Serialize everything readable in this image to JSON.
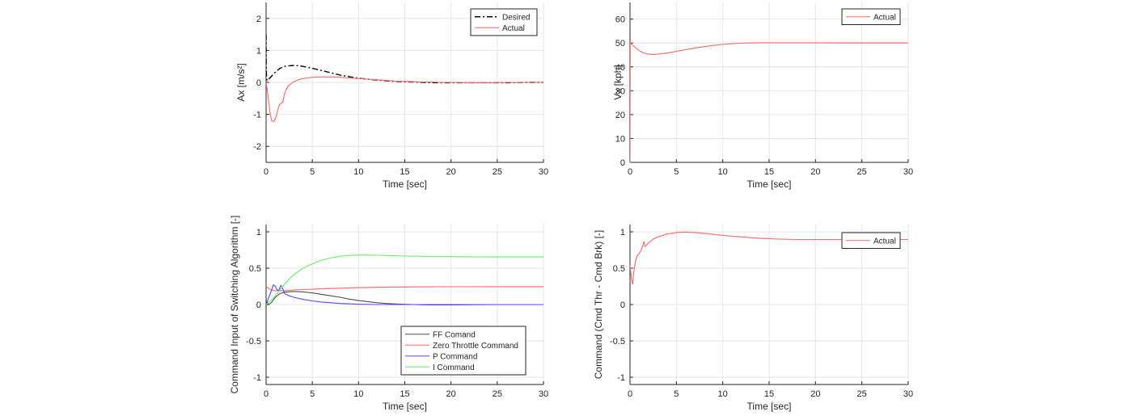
{
  "chart_data": [
    {
      "type": "line",
      "xlabel": "Time [sec]",
      "ylabel": "Ax [m/s²]",
      "xlim": [
        0,
        30
      ],
      "ylim": [
        -2.5,
        2.5
      ],
      "xticks": [
        0,
        5,
        10,
        15,
        20,
        25,
        30
      ],
      "yticks": [
        -2,
        -1,
        0,
        1,
        2
      ],
      "grid": true,
      "legend_position": "top-right",
      "series": [
        {
          "name": "Desired",
          "color": "#000000",
          "style": "dashdot",
          "x": [
            0,
            0.02,
            0.05,
            0.1,
            0.3,
            0.6,
            1.0,
            1.5,
            2.0,
            2.5,
            3.0,
            3.5,
            4.0,
            5.0,
            6.0,
            7.0,
            8.0,
            9.0,
            10.0,
            11.0,
            12.0,
            13.0,
            14.0,
            15.0,
            16.0,
            17.0,
            18.0,
            19.0,
            20.0,
            22.0,
            24.0,
            26.0,
            28.0,
            30.0
          ],
          "y": [
            1.5,
            0.5,
            0.15,
            0.06,
            0.1,
            0.2,
            0.32,
            0.44,
            0.5,
            0.52,
            0.53,
            0.52,
            0.5,
            0.44,
            0.37,
            0.3,
            0.23,
            0.18,
            0.13,
            0.1,
            0.07,
            0.05,
            0.03,
            0.02,
            0.01,
            0.0,
            -0.01,
            -0.01,
            -0.01,
            -0.01,
            -0.01,
            -0.01,
            0.0,
            0.0
          ]
        },
        {
          "name": "Actual",
          "color": "#ff6666",
          "style": "solid",
          "x": [
            0,
            0.2,
            0.4,
            0.6,
            0.8,
            1.0,
            1.2,
            1.4,
            1.6,
            1.8,
            2.0,
            2.2,
            2.5,
            3.0,
            3.5,
            4.0,
            5.0,
            6.0,
            7.0,
            8.0,
            9.0,
            10.0,
            11.0,
            12.0,
            13.0,
            14.0,
            15.0,
            16.0,
            17.0,
            18.0,
            19.0,
            20.0,
            22.0,
            24.0,
            26.0,
            28.0,
            30.0
          ],
          "y": [
            0,
            -0.4,
            -0.9,
            -1.2,
            -1.22,
            -1.15,
            -0.95,
            -0.72,
            -0.65,
            -0.62,
            -0.35,
            -0.2,
            -0.08,
            0.02,
            0.08,
            0.12,
            0.16,
            0.17,
            0.17,
            0.16,
            0.14,
            0.12,
            0.1,
            0.08,
            0.06,
            0.04,
            0.03,
            0.02,
            0.01,
            0.01,
            0.0,
            0.0,
            -0.01,
            -0.01,
            0.0,
            0.0,
            0.0
          ]
        }
      ]
    },
    {
      "type": "line",
      "xlabel": "Time [sec]",
      "ylabel": "Vx [kph]",
      "xlim": [
        0,
        30
      ],
      "ylim": [
        0,
        67
      ],
      "xticks": [
        0,
        5,
        10,
        15,
        20,
        25,
        30
      ],
      "yticks": [
        0,
        10,
        20,
        30,
        40,
        50,
        60
      ],
      "grid": true,
      "legend_position": "top-right",
      "series": [
        {
          "name": "Actual",
          "color": "#ff6666",
          "style": "solid",
          "x": [
            0,
            0.01,
            0.03,
            0.3,
            0.6,
            1.0,
            1.5,
            2.0,
            2.5,
            3.0,
            4.0,
            5.0,
            6.0,
            7.0,
            8.0,
            9.0,
            10.0,
            11.0,
            12.0,
            13.0,
            14.0,
            15.0,
            17.0,
            19.0,
            21.0,
            23.0,
            25.0,
            27.0,
            30.0
          ],
          "y": [
            0,
            20,
            50,
            49.0,
            48.0,
            46.8,
            45.8,
            45.3,
            45.2,
            45.3,
            45.8,
            46.5,
            47.2,
            47.9,
            48.5,
            49.0,
            49.4,
            49.7,
            49.9,
            50.0,
            50.1,
            50.1,
            50.1,
            50.1,
            50.05,
            50.0,
            50.0,
            50.0,
            50.0
          ]
        }
      ]
    },
    {
      "type": "line",
      "xlabel": "Time [sec]",
      "ylabel": "Command Input of Switching Algorithm [-]",
      "xlim": [
        0,
        30
      ],
      "ylim": [
        -1.1,
        1.1
      ],
      "xticks": [
        0,
        5,
        10,
        15,
        20,
        25,
        30
      ],
      "yticks": [
        -1,
        -0.5,
        0,
        0.5,
        1
      ],
      "grid": true,
      "legend_position": "bottom-right",
      "series": [
        {
          "name": "FF Comand",
          "color": "#4d4d4d",
          "style": "solid",
          "x": [
            0,
            0.3,
            0.6,
            1.0,
            1.5,
            2.0,
            3.0,
            4.0,
            5.0,
            6.0,
            7.0,
            8.0,
            9.0,
            10.0,
            11.0,
            12.0,
            13.0,
            14.0,
            15.0,
            16.0,
            17.0,
            18.0,
            20.0,
            25.0,
            30.0
          ],
          "y": [
            0.05,
            0.0,
            0.03,
            0.1,
            0.15,
            0.17,
            0.18,
            0.175,
            0.16,
            0.14,
            0.12,
            0.1,
            0.075,
            0.055,
            0.04,
            0.025,
            0.015,
            0.008,
            0.003,
            0.0,
            -0.003,
            -0.005,
            -0.005,
            0.0,
            0.0
          ]
        },
        {
          "name": "Zero Throttle Command",
          "color": "#ff6666",
          "style": "solid",
          "x": [
            0,
            0.3,
            0.6,
            1.0,
            2.0,
            3.0,
            4.0,
            5.0,
            6.0,
            8.0,
            10.0,
            12.0,
            14.0,
            16.0,
            18.0,
            20.0,
            25.0,
            30.0
          ],
          "y": [
            0.25,
            0.22,
            0.2,
            0.19,
            0.19,
            0.2,
            0.205,
            0.21,
            0.215,
            0.225,
            0.232,
            0.237,
            0.24,
            0.242,
            0.243,
            0.244,
            0.245,
            0.245
          ]
        },
        {
          "name": "P Command",
          "color": "#4d4dff",
          "style": "solid",
          "x": [
            0,
            0.3,
            0.6,
            0.8,
            1.0,
            1.2,
            1.4,
            1.6,
            1.8,
            2.0,
            2.5,
            3.0,
            4.0,
            5.0,
            6.0,
            7.0,
            8.0,
            10.0,
            12.0,
            15.0,
            20.0,
            25.0,
            30.0
          ],
          "y": [
            0.0,
            0.1,
            0.2,
            0.27,
            0.25,
            0.2,
            0.2,
            0.26,
            0.22,
            0.15,
            0.12,
            0.1,
            0.07,
            0.05,
            0.035,
            0.025,
            0.015,
            0.005,
            0.0,
            0.0,
            0.0,
            0.0,
            0.0
          ]
        },
        {
          "name": "I Command",
          "color": "#66ee66",
          "style": "solid",
          "x": [
            0,
            0.5,
            1.0,
            1.5,
            2.0,
            2.5,
            3.0,
            4.0,
            5.0,
            6.0,
            7.0,
            8.0,
            9.0,
            10.0,
            11.0,
            12.0,
            13.0,
            14.0,
            15.0,
            17.0,
            19.0,
            21.0,
            23.0,
            25.0,
            27.0,
            30.0
          ],
          "y": [
            0.0,
            0.05,
            0.12,
            0.2,
            0.28,
            0.35,
            0.41,
            0.5,
            0.56,
            0.61,
            0.64,
            0.665,
            0.675,
            0.68,
            0.68,
            0.678,
            0.675,
            0.672,
            0.668,
            0.663,
            0.66,
            0.658,
            0.656,
            0.655,
            0.655,
            0.655
          ]
        }
      ]
    },
    {
      "type": "line",
      "xlabel": "Time [sec]",
      "ylabel": "Command (Cmd Thr - Cmd Brk) [-]",
      "xlim": [
        0,
        30
      ],
      "ylim": [
        -1.1,
        1.1
      ],
      "xticks": [
        0,
        5,
        10,
        15,
        20,
        25,
        30
      ],
      "yticks": [
        -1,
        -0.5,
        0,
        0.5,
        1
      ],
      "grid": true,
      "legend_position": "top-right",
      "series": [
        {
          "name": "Actual",
          "color": "#ff6666",
          "style": "solid",
          "x": [
            0,
            0.1,
            0.2,
            0.3,
            0.4,
            0.6,
            0.8,
            1.0,
            1.2,
            1.4,
            1.5,
            1.6,
            1.8,
            2.0,
            2.5,
            3.0,
            4.0,
            5.0,
            6.0,
            7.0,
            8.0,
            9.0,
            10.0,
            12.0,
            14.0,
            16.0,
            18.0,
            20.0,
            22.0,
            25.0,
            30.0
          ],
          "y": [
            0.55,
            0.42,
            0.32,
            0.28,
            0.45,
            0.6,
            0.68,
            0.7,
            0.75,
            0.82,
            0.87,
            0.8,
            0.82,
            0.85,
            0.9,
            0.93,
            0.97,
            0.99,
            0.995,
            0.99,
            0.98,
            0.965,
            0.95,
            0.93,
            0.91,
            0.9,
            0.895,
            0.895,
            0.895,
            0.895,
            0.895
          ]
        }
      ]
    }
  ]
}
